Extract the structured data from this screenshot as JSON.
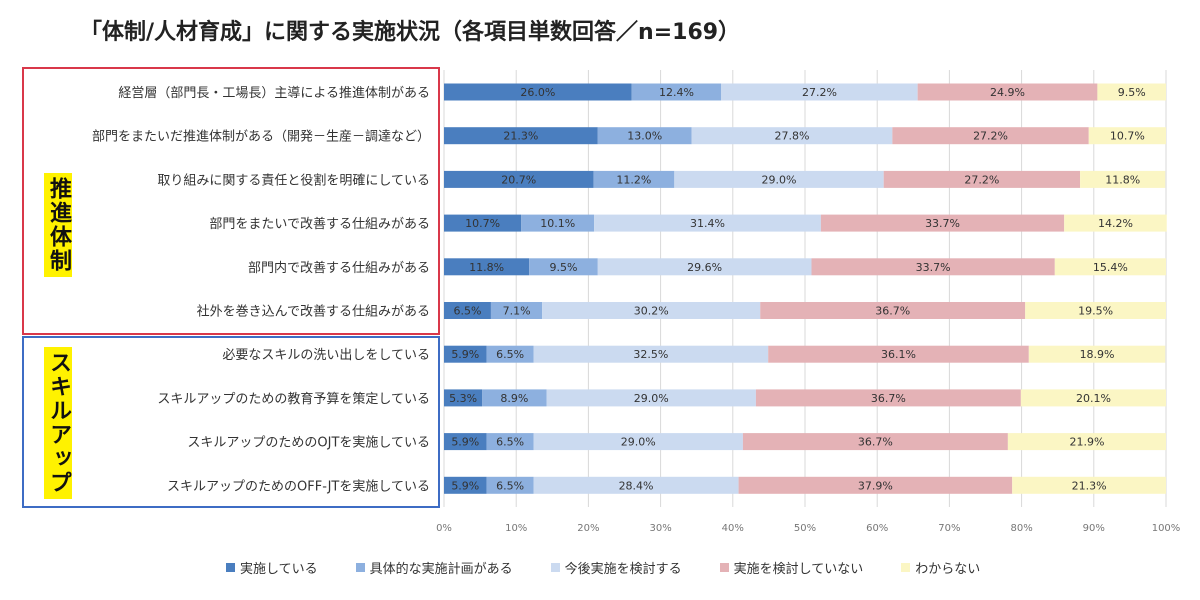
{
  "title": "「体制/人材育成」に関する実施状況（各項目単数回答／n=169）",
  "groups": [
    {
      "label": "推進体制",
      "color": "#d9384a"
    },
    {
      "label": "スキルアップ",
      "color": "#3d6cc4"
    }
  ],
  "chart_data": {
    "type": "bar",
    "orientation": "horizontal",
    "stacked": true,
    "percent": true,
    "categories": [
      "経営層（部門長・工場長）主導による推進体制がある",
      "部門をまたいだ推進体制がある（開発－生産－調達など）",
      "取り組みに関する責任と役割を明確にしている",
      "部門をまたいで改善する仕組みがある",
      "部門内で改善する仕組みがある",
      "社外を巻き込んで改善する仕組みがある",
      "必要なスキルの洗い出しをしている",
      "スキルアップのための教育予算を策定している",
      "スキルアップのためのOJTを実施している",
      "スキルアップのためのOFF-JTを実施している"
    ],
    "series": [
      {
        "name": "実施している",
        "color": "#4a7ebf",
        "values": [
          26.0,
          21.3,
          20.7,
          10.7,
          11.8,
          6.5,
          5.9,
          5.3,
          5.9,
          5.9
        ]
      },
      {
        "name": "具体的な実施計画がある",
        "color": "#8db0df",
        "values": [
          12.4,
          13.0,
          11.2,
          10.1,
          9.5,
          7.1,
          6.5,
          8.9,
          6.5,
          6.5
        ]
      },
      {
        "name": "今後実施を検討する",
        "color": "#cbdaf0",
        "values": [
          27.2,
          27.8,
          29.0,
          31.4,
          29.6,
          30.2,
          32.5,
          29.0,
          29.0,
          28.4
        ]
      },
      {
        "name": "実施を検討していない",
        "color": "#e4b2b6",
        "values": [
          24.9,
          27.2,
          27.2,
          33.7,
          33.7,
          36.7,
          36.1,
          36.7,
          36.7,
          37.9
        ]
      },
      {
        "name": "わからない",
        "color": "#fbf6c4",
        "values": [
          9.5,
          10.7,
          11.8,
          14.2,
          15.4,
          19.5,
          18.9,
          20.1,
          21.9,
          21.3
        ]
      }
    ],
    "xticks": [
      "0%",
      "10%",
      "20%",
      "30%",
      "40%",
      "50%",
      "60%",
      "70%",
      "80%",
      "90%",
      "100%"
    ],
    "xlim": [
      0,
      100
    ],
    "grid": true,
    "legend_position": "bottom"
  }
}
